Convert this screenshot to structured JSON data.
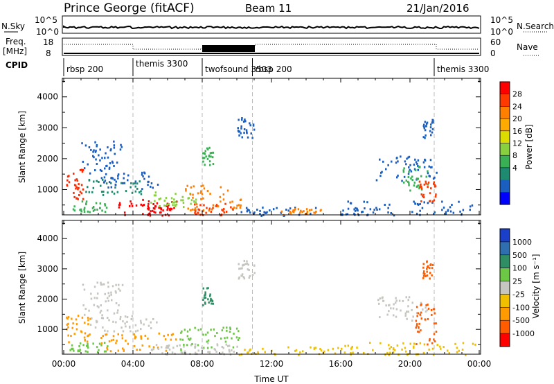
{
  "header": {
    "title": "Prince George (fitACF)",
    "beam": "Beam 11",
    "date": "21/Jan/2016"
  },
  "nsky_panel": {
    "left_label": "N.Sky",
    "right_label": "N.Search",
    "left_ticks": [
      "10^5",
      "10^0"
    ],
    "right_ticks": [
      "10^5",
      "10^0"
    ]
  },
  "freq_panel": {
    "left_label_1": "Freq.",
    "left_label_2": "[MHz]",
    "right_label": "Nave",
    "left_ticks": [
      "18",
      "8"
    ],
    "right_ticks": [
      "60",
      "0"
    ]
  },
  "cpid": {
    "label": "CPID",
    "segments": [
      {
        "name": "rbsp 200",
        "start": 0.0,
        "end": 4.0
      },
      {
        "name": "themis 3300",
        "start": 4.0,
        "end": 8.0
      },
      {
        "name": "twofsound 3503",
        "start": 8.0,
        "end": 10.9
      },
      {
        "name": "rbsp 200",
        "start": 10.9,
        "end": 21.4
      },
      {
        "name": "themis 3300",
        "start": 21.4,
        "end": 24.0
      }
    ]
  },
  "colorbars": {
    "power": {
      "label": "Power [dB]",
      "ticks": [
        "28",
        "24",
        "20",
        "16",
        "12",
        "8",
        "4"
      ],
      "colors": [
        "#ff0000",
        "#ff3a00",
        "#ff7f00",
        "#ffaa00",
        "#dcdc00",
        "#88d040",
        "#39b054",
        "#1e8a70",
        "#1a5fc0",
        "#0000ff"
      ]
    },
    "velocity": {
      "label": "Velocity [m s⁻¹]",
      "ticks": [
        "1000",
        "500",
        "100",
        "25",
        "-25",
        "-100",
        "-500",
        "-1000"
      ],
      "colors": [
        "#1a3fc8",
        "#2f6fb0",
        "#2e8e64",
        "#6cc844",
        "#c6c6c0",
        "#f0c000",
        "#ff9a00",
        "#ff5c00",
        "#ff0000"
      ]
    }
  },
  "chart_data": [
    {
      "type": "heatmap",
      "panel": "power",
      "ylabel": "Slant Range [km]",
      "ylim": [
        180,
        4600
      ],
      "yticks": [
        "1000",
        "2000",
        "3000",
        "4000"
      ],
      "xlim": [
        0,
        24
      ],
      "blobs": [
        {
          "t0": 0.1,
          "t1": 1.2,
          "r0": 700,
          "r1": 1700,
          "c": "#ff2a00"
        },
        {
          "t0": 0.3,
          "t1": 2.5,
          "r0": 300,
          "r1": 650,
          "c": "#39b054"
        },
        {
          "t0": 1.0,
          "t1": 3.4,
          "r0": 1500,
          "r1": 2600,
          "c": "#1a5fc0"
        },
        {
          "t0": 1.2,
          "t1": 4.5,
          "r0": 850,
          "r1": 1350,
          "c": "#1e8a70"
        },
        {
          "t0": 2.0,
          "t1": 5.5,
          "r0": 1050,
          "r1": 1600,
          "c": "#1a5fc0"
        },
        {
          "t0": 3.0,
          "t1": 6.5,
          "r0": 200,
          "r1": 700,
          "c": "#ff0000"
        },
        {
          "t0": 4.8,
          "t1": 6.2,
          "r0": 180,
          "r1": 500,
          "c": "#ff0000"
        },
        {
          "t0": 5.0,
          "t1": 7.8,
          "r0": 450,
          "r1": 1000,
          "c": "#88d040"
        },
        {
          "t0": 6.8,
          "t1": 10.2,
          "r0": 350,
          "r1": 1200,
          "c": "#ff7f00"
        },
        {
          "t0": 7.5,
          "t1": 9.8,
          "r0": 180,
          "r1": 600,
          "c": "#ff3a00"
        },
        {
          "t0": 8.0,
          "t1": 8.6,
          "r0": 1800,
          "r1": 2400,
          "c": "#39b054"
        },
        {
          "t0": 10.0,
          "t1": 11.0,
          "r0": 2700,
          "r1": 3400,
          "c": "#1a5fc0"
        },
        {
          "t0": 10.0,
          "t1": 17.0,
          "r0": 180,
          "r1": 450,
          "c": "#1a5fc0"
        },
        {
          "t0": 12.5,
          "t1": 15.0,
          "r0": 200,
          "r1": 400,
          "c": "#ff7f00"
        },
        {
          "t0": 16.0,
          "t1": 24.0,
          "r0": 180,
          "r1": 650,
          "c": "#1a5fc0"
        },
        {
          "t0": 18.0,
          "t1": 21.5,
          "r0": 1300,
          "r1": 2100,
          "c": "#1a5fc0"
        },
        {
          "t0": 19.5,
          "t1": 21.0,
          "r0": 1000,
          "r1": 1800,
          "c": "#39b054"
        },
        {
          "t0": 20.5,
          "t1": 21.5,
          "r0": 600,
          "r1": 1300,
          "c": "#ff3a00"
        },
        {
          "t0": 20.7,
          "t1": 21.3,
          "r0": 2700,
          "r1": 3300,
          "c": "#1a5fc0"
        }
      ]
    },
    {
      "type": "heatmap",
      "panel": "velocity",
      "ylabel": "Slant Range [km]",
      "xlabel": "Time UT",
      "ylim": [
        180,
        4600
      ],
      "yticks": [
        "1000",
        "2000",
        "3000",
        "4000"
      ],
      "xlim": [
        0,
        24
      ],
      "xticks": [
        "00:00",
        "04:00",
        "08:00",
        "12:00",
        "16:00",
        "20:00",
        "00:00"
      ],
      "blobs": [
        {
          "t0": 0.1,
          "t1": 1.5,
          "r0": 600,
          "r1": 1500,
          "c": "#ff9a00"
        },
        {
          "t0": 0.3,
          "t1": 2.5,
          "r0": 250,
          "r1": 600,
          "c": "#6cc844"
        },
        {
          "t0": 1.0,
          "t1": 3.4,
          "r0": 1500,
          "r1": 2600,
          "c": "#c6c6c0"
        },
        {
          "t0": 1.5,
          "t1": 5.5,
          "r0": 950,
          "r1": 1500,
          "c": "#c6c6c0"
        },
        {
          "t0": 2.0,
          "t1": 6.5,
          "r0": 300,
          "r1": 900,
          "c": "#ff9a00"
        },
        {
          "t0": 4.5,
          "t1": 7.5,
          "r0": 180,
          "r1": 550,
          "c": "#c6c6c0"
        },
        {
          "t0": 6.5,
          "t1": 10.2,
          "r0": 350,
          "r1": 1100,
          "c": "#6cc844"
        },
        {
          "t0": 7.5,
          "t1": 10.0,
          "r0": 180,
          "r1": 600,
          "c": "#c6c6c0"
        },
        {
          "t0": 8.0,
          "t1": 8.6,
          "r0": 1800,
          "r1": 2400,
          "c": "#2e8e64"
        },
        {
          "t0": 10.0,
          "t1": 11.0,
          "r0": 2700,
          "r1": 3300,
          "c": "#c6c6c0"
        },
        {
          "t0": 10.0,
          "t1": 17.0,
          "r0": 180,
          "r1": 450,
          "c": "#f0c000"
        },
        {
          "t0": 16.0,
          "t1": 24.0,
          "r0": 180,
          "r1": 600,
          "c": "#f0c000"
        },
        {
          "t0": 18.0,
          "t1": 21.0,
          "r0": 1300,
          "r1": 2100,
          "c": "#c6c6c0"
        },
        {
          "t0": 20.3,
          "t1": 21.5,
          "r0": 500,
          "r1": 1900,
          "c": "#ff5c00"
        },
        {
          "t0": 20.7,
          "t1": 21.3,
          "r0": 2700,
          "r1": 3300,
          "c": "#ff5c00"
        }
      ]
    }
  ]
}
